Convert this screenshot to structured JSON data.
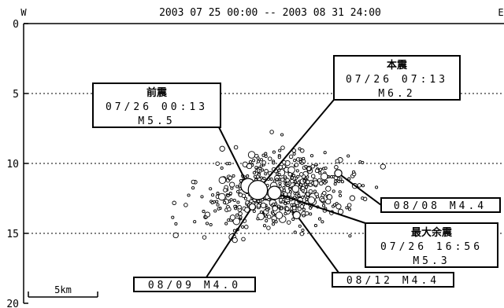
{
  "header": {
    "title": "2003 07 25 00:00 -- 2003 08 31 24:00",
    "west_label": "W",
    "east_label": "E"
  },
  "chart_data": {
    "type": "scatter",
    "title": "2003 07 25 00:00 -- 2003 08 31 24:00",
    "xlabel": "",
    "ylabel": "",
    "ylim": [
      0,
      20
    ],
    "y_inverted": true,
    "yticks": [
      {
        "value": 0,
        "label": "0"
      },
      {
        "value": 5,
        "label": "5"
      },
      {
        "value": 10,
        "label": "10"
      },
      {
        "value": 15,
        "label": "15"
      },
      {
        "value": 20,
        "label": "20"
      }
    ],
    "grid": "horizontal dotted at 5, 10, 15",
    "scale_bar": {
      "label": "5km",
      "length_km": 5
    },
    "annotations": [
      {
        "id": "foreshock",
        "title": "前震",
        "line1": "07/26 00:13",
        "line2": "M5.5"
      },
      {
        "id": "mainshock",
        "title": "本震",
        "line1": "07/26 07:13",
        "line2": "M6.2"
      },
      {
        "id": "aftershock_0808",
        "title": "",
        "line1": "08/08 M4.4",
        "line2": ""
      },
      {
        "id": "largest_aftershock",
        "title": "最大余震",
        "line1": "07/26 16:56",
        "line2": "M5.3"
      },
      {
        "id": "aftershock_0809",
        "title": "",
        "line1": "08/09 M4.0",
        "line2": ""
      },
      {
        "id": "aftershock_0812",
        "title": "",
        "line1": "08/12 M4.4",
        "line2": ""
      }
    ],
    "major_events": [
      {
        "id": "foreshock",
        "x_km": 16.2,
        "depth_km": 11.6,
        "magnitude": 5.5
      },
      {
        "id": "mainshock",
        "x_km": 16.9,
        "depth_km": 11.9,
        "magnitude": 6.2
      },
      {
        "id": "largest_aftershock",
        "x_km": 18.1,
        "depth_km": 12.1,
        "magnitude": 5.3
      },
      {
        "id": "aftershock_0808",
        "x_km": 22.7,
        "depth_km": 10.7,
        "magnitude": 4.4
      },
      {
        "id": "aftershock_0809",
        "x_km": 16.5,
        "depth_km": 13.1,
        "magnitude": 4.0
      },
      {
        "id": "aftershock_0812",
        "x_km": 19.7,
        "depth_km": 13.7,
        "magnitude": 4.4
      }
    ],
    "cloud": {
      "count": 560,
      "center_x_km": 18.4,
      "center_depth_km": 11.9,
      "spread_x_km": 3.2,
      "spread_depth_km": 1.35,
      "x_range_km": [
        10.5,
        26.5
      ],
      "depth_range_km": [
        6.0,
        15.6
      ]
    }
  }
}
